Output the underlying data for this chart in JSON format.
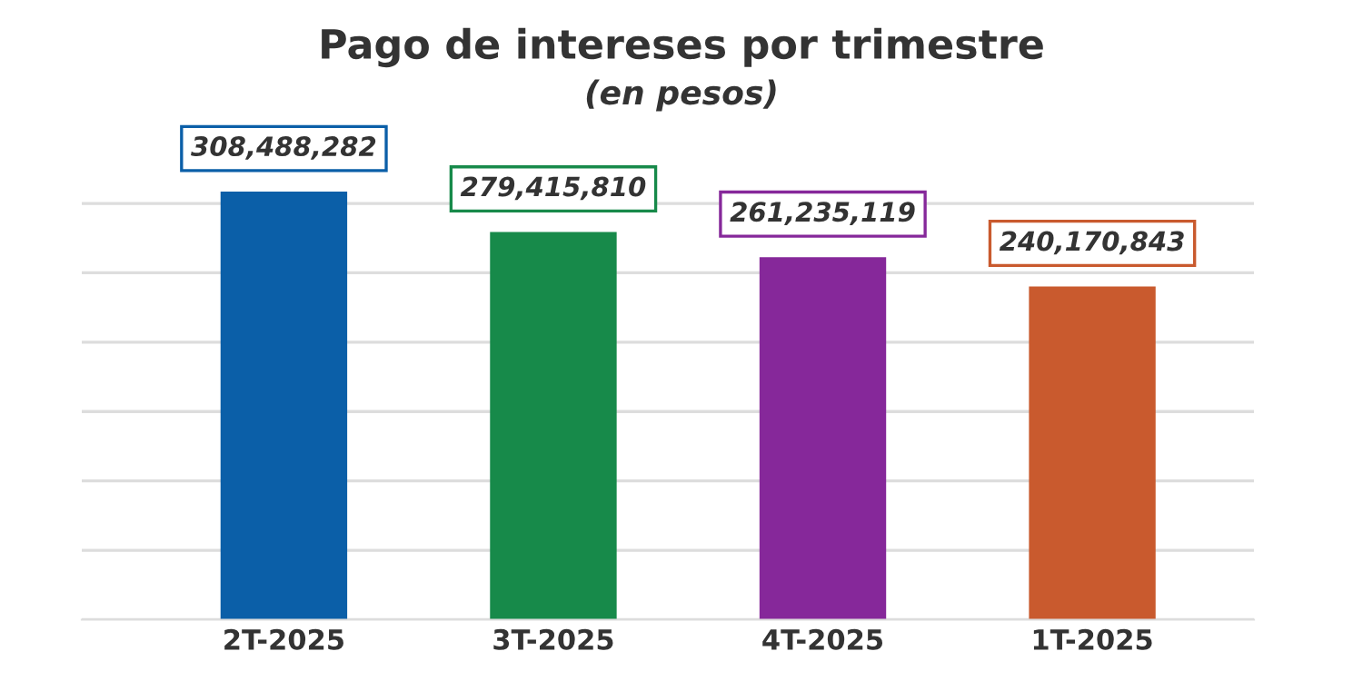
{
  "chart_data": {
    "type": "bar",
    "title": "Pago de intereses por trimestre",
    "subtitle": "(en pesos)",
    "categories": [
      "2T-2025",
      "3T-2025",
      "4T-2025",
      "1T-2025"
    ],
    "values": [
      308488282,
      279415810,
      261235119,
      240170843
    ],
    "colors": [
      "#0b5fa8",
      "#178a4a",
      "#86289a",
      "#c95a2e"
    ],
    "value_labels": [
      "308,488,282",
      "279,415,810",
      "261,235,119",
      "240,170,843"
    ],
    "tick_labels": "x",
    "grid": "y",
    "legend": false
  }
}
